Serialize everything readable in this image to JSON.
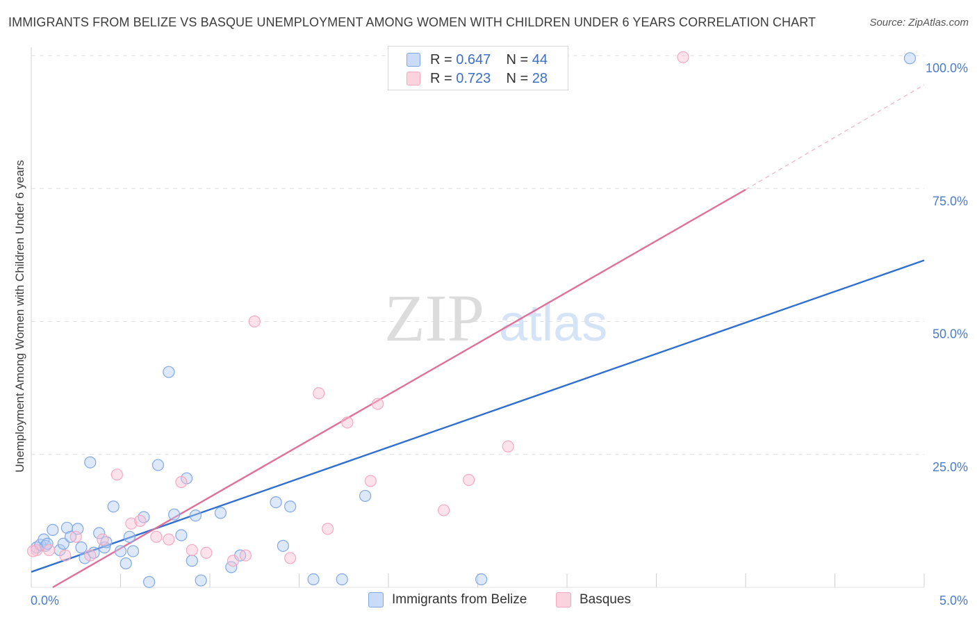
{
  "title": "IMMIGRANTS FROM BELIZE VS BASQUE UNEMPLOYMENT AMONG WOMEN WITH CHILDREN UNDER 6 YEARS CORRELATION CHART",
  "source": "Source: ZipAtlas.com",
  "watermark": {
    "zip": "ZIP",
    "atlas": "atlas"
  },
  "legend": {
    "r_label": "R =",
    "n_label": "N =",
    "rows": [
      {
        "r": "0.647",
        "n": "44"
      },
      {
        "r": "0.723",
        "n": "28"
      }
    ]
  },
  "chart_data": {
    "type": "scatter",
    "title": "IMMIGRANTS FROM BELIZE VS BASQUE UNEMPLOYMENT AMONG WOMEN WITH CHILDREN UNDER 6 YEARS CORRELATION CHART",
    "xlabel": "",
    "ylabel": "Unemployment Among Women with Children Under 6 years",
    "xlim": [
      0,
      5
    ],
    "ylim": [
      0,
      100
    ],
    "x_tick_labels": [
      "0.0%",
      "5.0%"
    ],
    "y_tick_labels": [
      "100.0%",
      "75.0%",
      "50.0%",
      "25.0%"
    ],
    "y_tick_values": [
      100,
      75,
      50,
      25
    ],
    "series": [
      {
        "name": "Immigrants from Belize",
        "color": "#7fa8e8",
        "line_color": "#2e6fd0",
        "r": "0.647",
        "n": "44",
        "trend": {
          "x": [
            0,
            5
          ],
          "y": [
            2.9,
            61.5
          ]
        },
        "points": [
          [
            0.03,
            7.5
          ],
          [
            0.05,
            8.0
          ],
          [
            0.07,
            9.0
          ],
          [
            0.08,
            7.8
          ],
          [
            0.09,
            8.2
          ],
          [
            0.12,
            10.8
          ],
          [
            0.16,
            7.0
          ],
          [
            0.18,
            8.2
          ],
          [
            0.2,
            11.2
          ],
          [
            0.22,
            9.5
          ],
          [
            0.26,
            11.0
          ],
          [
            0.28,
            7.5
          ],
          [
            0.3,
            5.5
          ],
          [
            0.33,
            23.5
          ],
          [
            0.35,
            6.5
          ],
          [
            0.38,
            10.2
          ],
          [
            0.41,
            7.5
          ],
          [
            0.42,
            8.5
          ],
          [
            0.46,
            15.2
          ],
          [
            0.5,
            6.8
          ],
          [
            0.53,
            4.5
          ],
          [
            0.55,
            9.5
          ],
          [
            0.57,
            6.8
          ],
          [
            0.63,
            13.2
          ],
          [
            0.66,
            1.0
          ],
          [
            0.71,
            23.0
          ],
          [
            0.77,
            40.5
          ],
          [
            0.8,
            13.7
          ],
          [
            0.84,
            9.8
          ],
          [
            0.87,
            20.5
          ],
          [
            0.9,
            5.0
          ],
          [
            0.92,
            13.5
          ],
          [
            0.95,
            1.3
          ],
          [
            1.06,
            14.0
          ],
          [
            1.12,
            3.8
          ],
          [
            1.17,
            6.0
          ],
          [
            1.37,
            16.0
          ],
          [
            1.41,
            7.8
          ],
          [
            1.45,
            15.2
          ],
          [
            1.58,
            1.5
          ],
          [
            1.74,
            1.5
          ],
          [
            1.87,
            17.2
          ],
          [
            2.52,
            1.5
          ],
          [
            4.92,
            99.5
          ]
        ]
      },
      {
        "name": "Basques",
        "color": "#f5a8c0",
        "line_color": "#e0709a",
        "r": "0.723",
        "n": "28",
        "trend": {
          "x": [
            0.12,
            4.0
          ],
          "y": [
            0.0,
            74.8
          ]
        },
        "trend_dashed": {
          "x": [
            4.0,
            5.0
          ],
          "y": [
            74.8,
            94.5
          ]
        },
        "points": [
          [
            0.03,
            7.0
          ],
          [
            0.1,
            7.0
          ],
          [
            0.19,
            6.0
          ],
          [
            0.25,
            9.5
          ],
          [
            0.33,
            6.0
          ],
          [
            0.4,
            9.0
          ],
          [
            0.48,
            21.2
          ],
          [
            0.56,
            12.0
          ],
          [
            0.61,
            12.5
          ],
          [
            0.7,
            9.5
          ],
          [
            0.77,
            9.0
          ],
          [
            0.84,
            19.8
          ],
          [
            0.9,
            7.0
          ],
          [
            0.98,
            6.5
          ],
          [
            1.13,
            5.0
          ],
          [
            1.2,
            6.0
          ],
          [
            1.25,
            50.0
          ],
          [
            1.45,
            5.5
          ],
          [
            1.61,
            36.5
          ],
          [
            1.66,
            11.0
          ],
          [
            1.77,
            31.0
          ],
          [
            1.9,
            20.0
          ],
          [
            1.94,
            34.5
          ],
          [
            2.31,
            14.5
          ],
          [
            2.45,
            20.2
          ],
          [
            2.67,
            26.5
          ],
          [
            3.65,
            99.7
          ],
          [
            0.01,
            6.8
          ]
        ]
      }
    ]
  }
}
